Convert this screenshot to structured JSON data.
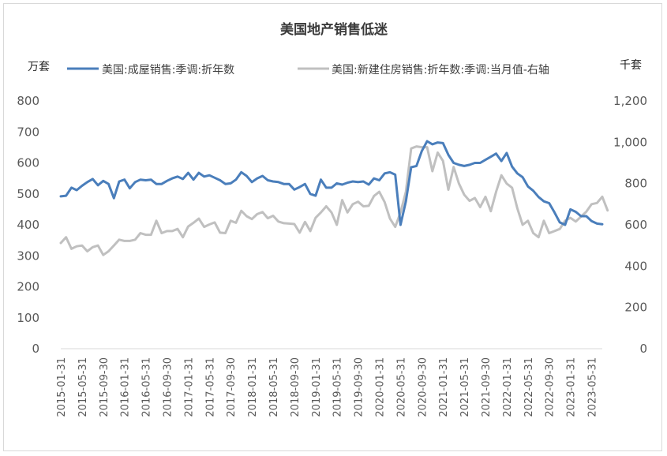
{
  "chart_data": {
    "type": "line",
    "title": "美国地产销售低迷",
    "left_unit": "万套",
    "right_unit": "千套",
    "legend_placement": "top",
    "grid": false,
    "y_left": {
      "min": 0,
      "max": 800,
      "ticks": [
        "0",
        "100",
        "200",
        "300",
        "400",
        "500",
        "600",
        "700",
        "800"
      ]
    },
    "y_right": {
      "min": 0,
      "max": 1200,
      "ticks": [
        "0",
        "200",
        "400",
        "600",
        "800",
        "1,000",
        "1,200"
      ]
    },
    "x_start": "2015-01",
    "x_ticks": [
      "2015-01-31",
      "2015-05-31",
      "2015-09-30",
      "2016-01-31",
      "2016-05-31",
      "2016-09-30",
      "2017-01-31",
      "2017-05-31",
      "2017-09-30",
      "2018-01-31",
      "2018-05-31",
      "2018-09-30",
      "2019-01-31",
      "2019-05-31",
      "2019-09-30",
      "2020-01-31",
      "2020-05-31",
      "2020-09-30",
      "2021-01-31",
      "2021-05-31",
      "2021-09-30",
      "2022-01-31",
      "2022-05-31",
      "2022-09-30",
      "2023-01-31",
      "2023-05-31"
    ],
    "series": [
      {
        "name": "美国:成屋销售:季调:折年数",
        "axis": "left",
        "color": "#4a7ebb",
        "values": [
          492,
          494,
          520,
          512,
          526,
          538,
          548,
          528,
          542,
          532,
          486,
          540,
          546,
          518,
          538,
          546,
          544,
          546,
          532,
          532,
          542,
          550,
          556,
          548,
          568,
          546,
          568,
          556,
          560,
          552,
          544,
          532,
          534,
          546,
          570,
          558,
          538,
          550,
          558,
          544,
          540,
          538,
          532,
          532,
          514,
          522,
          532,
          500,
          494,
          546,
          520,
          520,
          534,
          530,
          536,
          540,
          538,
          540,
          530,
          550,
          544,
          566,
          570,
          562,
          400,
          476,
          586,
          590,
          638,
          670,
          660,
          666,
          664,
          626,
          600,
          594,
          590,
          594,
          600,
          600,
          610,
          620,
          630,
          606,
          632,
          588,
          566,
          554,
          524,
          510,
          490,
          476,
          470,
          440,
          408,
          400,
          450,
          442,
          428,
          428,
          412,
          404,
          402
        ]
      },
      {
        "name": "美国:新建住房销售:折年数:季调:当月值-右轴",
        "axis": "right",
        "color": "#c0c0c0",
        "values": [
          512,
          540,
          484,
          496,
          500,
          472,
          492,
          500,
          454,
          472,
          500,
          528,
          522,
          522,
          528,
          560,
          552,
          552,
          620,
          560,
          570,
          570,
          580,
          540,
          592,
          610,
          630,
          590,
          602,
          612,
          562,
          560,
          620,
          610,
          668,
          642,
          628,
          652,
          662,
          632,
          644,
          616,
          608,
          606,
          604,
          562,
          614,
          570,
          634,
          660,
          690,
          660,
          600,
          720,
          660,
          700,
          712,
          690,
          692,
          740,
          760,
          710,
          630,
          590,
          660,
          760,
          970,
          980,
          976,
          976,
          860,
          950,
          910,
          770,
          880,
          800,
          746,
          716,
          730,
          686,
          736,
          666,
          760,
          840,
          800,
          780,
          680,
          600,
          620,
          560,
          540,
          620,
          560,
          570,
          580,
          620,
          634,
          616,
          640,
          664,
          700,
          706,
          736,
          670
        ]
      }
    ]
  }
}
